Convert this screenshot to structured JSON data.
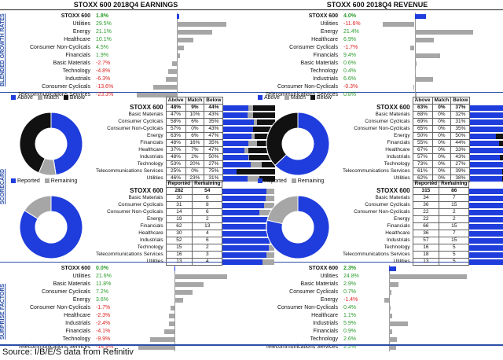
{
  "headers": {
    "earnings": "STOXX 600 2018Q4 EARNINGS",
    "revenue": "STOXX 600 2018Q4 REVENUE"
  },
  "section_labels": {
    "growth": "BLENDED GROWTH RATES",
    "scorecard": "SCORECARD",
    "surprise": "SURPRISE FACTORS"
  },
  "source": "Source: I/B/E/S data from Refinitiv",
  "colors": {
    "blue": "#1f3ddc",
    "gray": "#a6a6a6",
    "black": "#111111",
    "green": "#2a9a2a",
    "red": "#d22222"
  },
  "chart_data": [
    {
      "type": "bar",
      "id": "earnings_growth",
      "title": "STOXX 600 2018Q4 EARNINGS - Blended Growth Rates",
      "categories": [
        "STOXX 600",
        "Utilities",
        "Energy",
        "Healthcare",
        "Consumer Non-Cyclicals",
        "Financials",
        "Basic Materials",
        "Technology",
        "Industrials",
        "Consumer Cyclicals",
        "Telecommunications Services"
      ],
      "values": [
        1.8,
        29.5,
        21.1,
        10.1,
        4.5,
        1.9,
        -2.7,
        -4.8,
        -6.3,
        -13.6,
        -23.3
      ],
      "labels": [
        "1.8%",
        "29.5%",
        "21.1%",
        "10.1%",
        "4.5%",
        "1.9%",
        "-2.7%",
        "-4.8%",
        "-6.3%",
        "-13.6%",
        "-23.3%"
      ],
      "xlim": [
        -30,
        35
      ]
    },
    {
      "type": "bar",
      "id": "revenue_growth",
      "title": "STOXX 600 2018Q4 REVENUE - Blended Growth Rates",
      "categories": [
        "STOXX 600",
        "Utilities",
        "Energy",
        "Healthcare",
        "Consumer Cyclicals",
        "Financials",
        "Basic Materials",
        "Technology",
        "Industrials",
        "Consumer Non-Cyclicals",
        "Telecommunications Services"
      ],
      "values": [
        4.0,
        -11.6,
        21.4,
        6.9,
        -1.7,
        9.4,
        0.6,
        0.4,
        6.6,
        -0.3,
        0.8
      ],
      "labels": [
        "4.0%",
        "-11.6%",
        "21.4%",
        "6.9%",
        "-1.7%",
        "9.4%",
        "0.6%",
        "0.4%",
        "6.6%",
        "-0.3%",
        "0.8%"
      ],
      "xlim": [
        -15,
        25
      ]
    },
    {
      "type": "pie",
      "id": "earnings_beat_donut",
      "legend": [
        "Above",
        "Match",
        "Below"
      ],
      "values": [
        48,
        9,
        44
      ]
    },
    {
      "type": "table",
      "id": "earnings_beat_table",
      "columns": [
        "Above",
        "Match",
        "Below"
      ],
      "rows": [
        {
          "name": "STOXX 600",
          "values": [
            "48%",
            "9%",
            "44%"
          ]
        },
        {
          "name": "Basic Materials",
          "values": [
            "47%",
            "10%",
            "43%"
          ]
        },
        {
          "name": "Consumer Cyclicals",
          "values": [
            "58%",
            "6%",
            "35%"
          ]
        },
        {
          "name": "Consumer Non-Cyclicals",
          "values": [
            "57%",
            "0%",
            "43%"
          ]
        },
        {
          "name": "Energy",
          "values": [
            "63%",
            "6%",
            "47%"
          ]
        },
        {
          "name": "Financials",
          "values": [
            "48%",
            "16%",
            "35%"
          ]
        },
        {
          "name": "Healthcare",
          "values": [
            "37%",
            "7%",
            "47%"
          ]
        },
        {
          "name": "Industrials",
          "values": [
            "48%",
            "2%",
            "50%"
          ]
        },
        {
          "name": "Technology",
          "values": [
            "53%",
            "20%",
            "27%"
          ]
        },
        {
          "name": "Telecommunications Services",
          "values": [
            "25%",
            "0%",
            "75%"
          ]
        },
        {
          "name": "Utilities",
          "values": [
            "46%",
            "23%",
            "31%"
          ]
        }
      ]
    },
    {
      "type": "pie",
      "id": "revenue_beat_donut",
      "legend": [
        "Above",
        "Match",
        "Below"
      ],
      "values": [
        63,
        0,
        37
      ]
    },
    {
      "type": "table",
      "id": "revenue_beat_table",
      "columns": [
        "Above",
        "Match",
        "Below"
      ],
      "rows": [
        {
          "name": "STOXX 600",
          "values": [
            "63%",
            "0%",
            "37%"
          ]
        },
        {
          "name": "Basic Materials",
          "values": [
            "68%",
            "0%",
            "32%"
          ]
        },
        {
          "name": "Consumer Cyclicals",
          "values": [
            "69%",
            "0%",
            "31%"
          ]
        },
        {
          "name": "Consumer Non-Cyclicals",
          "values": [
            "65%",
            "0%",
            "35%"
          ]
        },
        {
          "name": "Energy",
          "values": [
            "50%",
            "0%",
            "50%"
          ]
        },
        {
          "name": "Financials",
          "values": [
            "55%",
            "0%",
            "44%"
          ]
        },
        {
          "name": "Healthcare",
          "values": [
            "67%",
            "0%",
            "33%"
          ]
        },
        {
          "name": "Industrials",
          "values": [
            "57%",
            "0%",
            "43%"
          ]
        },
        {
          "name": "Technology",
          "values": [
            "73%",
            "0%",
            "27%"
          ]
        },
        {
          "name": "Telecommunications Services",
          "values": [
            "61%",
            "0%",
            "39%"
          ]
        },
        {
          "name": "Utilities",
          "values": [
            "62%",
            "0%",
            "38%"
          ]
        }
      ]
    },
    {
      "type": "pie",
      "id": "earnings_reported_donut",
      "legend": [
        "Reported",
        "Remaining"
      ],
      "values": [
        282,
        54
      ]
    },
    {
      "type": "table",
      "id": "earnings_reported_table",
      "columns": [
        "Reported",
        "Remaining"
      ],
      "rows": [
        {
          "name": "STOXX 600",
          "values": [
            "282",
            "54"
          ]
        },
        {
          "name": "Basic Materials",
          "values": [
            "30",
            "6"
          ]
        },
        {
          "name": "Consumer Cyclicals",
          "values": [
            "31",
            "8"
          ]
        },
        {
          "name": "Consumer Non-Cyclicals",
          "values": [
            "14",
            "6"
          ]
        },
        {
          "name": "Energy",
          "values": [
            "19",
            "2"
          ]
        },
        {
          "name": "Financials",
          "values": [
            "62",
            "13"
          ]
        },
        {
          "name": "Healthcare",
          "values": [
            "30",
            "4"
          ]
        },
        {
          "name": "Industrials",
          "values": [
            "52",
            "6"
          ]
        },
        {
          "name": "Technology",
          "values": [
            "15",
            "2"
          ]
        },
        {
          "name": "Telecommunications Services",
          "values": [
            "16",
            "3"
          ]
        },
        {
          "name": "Utilities",
          "values": [
            "13",
            "4"
          ]
        }
      ]
    },
    {
      "type": "pie",
      "id": "revenue_reported_donut",
      "legend": [
        "Reported",
        "Remaining"
      ],
      "values": [
        315,
        86
      ]
    },
    {
      "type": "table",
      "id": "revenue_reported_table",
      "columns": [
        "Reported",
        "Remaining"
      ],
      "rows": [
        {
          "name": "STOXX 600",
          "values": [
            "315",
            "86"
          ]
        },
        {
          "name": "Basic Materials",
          "values": [
            "34",
            "7"
          ]
        },
        {
          "name": "Consumer Cyclicals",
          "values": [
            "36",
            "15"
          ]
        },
        {
          "name": "Consumer Non-Cyclicals",
          "values": [
            "22",
            "2"
          ]
        },
        {
          "name": "Energy",
          "values": [
            "22",
            "2"
          ]
        },
        {
          "name": "Financials",
          "values": [
            "66",
            "15"
          ]
        },
        {
          "name": "Healthcare",
          "values": [
            "36",
            "7"
          ]
        },
        {
          "name": "Industrials",
          "values": [
            "57",
            "15"
          ]
        },
        {
          "name": "Technology",
          "values": [
            "16",
            "5"
          ]
        },
        {
          "name": "Telecommunications Services",
          "values": [
            "18",
            "5"
          ]
        },
        {
          "name": "Utilities",
          "values": [
            "13",
            "5"
          ]
        }
      ]
    },
    {
      "type": "bar",
      "id": "earnings_surprise",
      "title": "STOXX 600 2018Q4 EARNINGS - Surprise Factors",
      "categories": [
        "STOXX 600",
        "Utilities",
        "Basic Materials",
        "Consumer Cyclicals",
        "Energy",
        "Consumer Non-Cyclicals",
        "Healthcare",
        "Industrials",
        "Financials",
        "Technology",
        "Telecommunications Services"
      ],
      "values": [
        0.0,
        21.6,
        11.8,
        7.2,
        3.6,
        -1.7,
        -2.3,
        -2.4,
        -4.1,
        -9.9,
        -14.9
      ],
      "labels": [
        "0.0%",
        "21.6%",
        "11.8%",
        "7.2%",
        "3.6%",
        "-1.7%",
        "-2.3%",
        "-2.4%",
        "-4.1%",
        "-9.9%",
        "-14.9%"
      ],
      "xlim": [
        -20,
        25
      ]
    },
    {
      "type": "bar",
      "id": "revenue_surprise",
      "title": "STOXX 600 2018Q4 REVENUE - Surprise Factors",
      "categories": [
        "STOXX 600",
        "Utilities",
        "Basic Materials",
        "Consumer Cyclicals",
        "Energy",
        "Consumer Non-Cyclicals",
        "Healthcare",
        "Industrials",
        "Financials",
        "Technology",
        "Telecommunications Services"
      ],
      "values": [
        2.3,
        24.8,
        2.9,
        0.7,
        -1.4,
        0.4,
        1.1,
        5.9,
        0.9,
        2.6,
        2.2
      ],
      "labels": [
        "2.3%",
        "24.8%",
        "2.9%",
        "0.7%",
        "-1.4%",
        "0.4%",
        "1.1%",
        "5.9%",
        "0.9%",
        "2.6%",
        "2.2%"
      ],
      "xlim": [
        -5,
        30
      ]
    }
  ]
}
